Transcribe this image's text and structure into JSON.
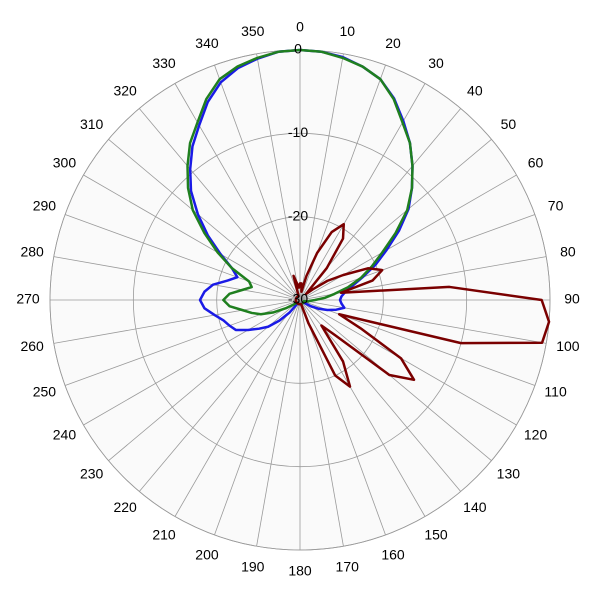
{
  "chart_data": {
    "type": "polar",
    "theta": [
      0,
      5,
      10,
      15,
      20,
      25,
      30,
      35,
      40,
      45,
      50,
      55,
      60,
      65,
      70,
      75,
      80,
      85,
      90,
      95,
      100,
      105,
      110,
      115,
      120,
      125,
      130,
      135,
      140,
      145,
      150,
      155,
      160,
      165,
      170,
      175,
      180,
      185,
      190,
      195,
      200,
      205,
      210,
      215,
      220,
      225,
      230,
      235,
      240,
      245,
      250,
      255,
      260,
      265,
      270,
      275,
      280,
      285,
      290,
      295,
      300,
      305,
      310,
      315,
      320,
      325,
      330,
      335,
      340,
      345,
      350,
      355
    ],
    "series": [
      {
        "color": "#1a1ae6",
        "values": [
          0,
          -0.1,
          -0.4,
          -1,
          -1.8,
          -3.3,
          -5.2,
          -7,
          -9,
          -11,
          -13,
          -15.5,
          -18,
          -20,
          -22,
          -23.5,
          -24.5,
          -25,
          -25.2,
          -25,
          -24.6,
          -25.5,
          -26.5,
          -27.5,
          -28.5,
          -29.5,
          -29.5,
          -29.5,
          -29.5,
          -29.5,
          -29.5,
          -29.5,
          -29.5,
          -29.5,
          -29.5,
          -29.5,
          -29.5,
          -29.5,
          -29.5,
          -29.5,
          -29.5,
          -29.5,
          -29.5,
          -29.5,
          -28,
          -26.5,
          -25,
          -24,
          -22.8,
          -21.5,
          -21,
          -20.5,
          -19.6,
          -18.5,
          -18,
          -18.5,
          -19.4,
          -21,
          -22,
          -21,
          -19,
          -16.5,
          -14,
          -11.5,
          -9.5,
          -7.5,
          -5.8,
          -3.8,
          -2.2,
          -1.2,
          -0.6,
          -0.1
        ]
      },
      {
        "color": "#1f7f1f",
        "values": [
          0,
          -0.1,
          -0.5,
          -1,
          -1.8,
          -3.4,
          -5.4,
          -7,
          -9,
          -11,
          -13.2,
          -16,
          -18.6,
          -20.5,
          -22.2,
          -24,
          -25.8,
          -27,
          -28.2,
          -28.8,
          -29,
          -29.5,
          -29.5,
          -29.5,
          -29.5,
          -29.5,
          -29.5,
          -29.5,
          -29.5,
          -29.5,
          -29.5,
          -29.5,
          -29.5,
          -29.5,
          -29.5,
          -29.5,
          -29.5,
          -29.5,
          -29.5,
          -29.5,
          -29.5,
          -29.5,
          -29.5,
          -29.5,
          -29.5,
          -29.5,
          -29.5,
          -29,
          -28,
          -26.5,
          -25,
          -24,
          -23,
          -21.5,
          -20.8,
          -21.5,
          -23,
          -24,
          -23.5,
          -21,
          -18.6,
          -16,
          -13.2,
          -11,
          -9,
          -7,
          -5.4,
          -3.4,
          -1.8,
          -1,
          -0.5,
          -0.1
        ]
      },
      {
        "color": "#7a0000",
        "values": [
          -28,
          -28,
          -29,
          -27,
          -24,
          -21,
          -19.5,
          -21,
          -25,
          -29,
          -28,
          -26,
          -24,
          -21,
          -19.5,
          -21,
          -25,
          -12,
          -1,
          0,
          -0.5,
          -10,
          -25,
          -22,
          -16,
          -13.3,
          -16,
          -24,
          -26,
          -21,
          -18,
          -20,
          -27,
          -29.5,
          -29.5,
          -29.5,
          -29.5,
          -29.5,
          -29.5,
          -29.5,
          -29.5,
          -29.5,
          -29.5,
          -29.5,
          -29.5,
          -29.5,
          -29.5,
          -29.5,
          -29.5,
          -29.5,
          -29.5,
          -29.5,
          -29.5,
          -29.5,
          -29.5,
          -29.5,
          -29.5,
          -29.5,
          -29.5,
          -29.5,
          -29.5,
          -29.5,
          -29.5,
          -29.5,
          -29.5,
          -29.5,
          -29.5,
          -29.5,
          -29.5,
          -27,
          -28,
          -28.5
        ]
      }
    ],
    "rlim": [
      -30,
      0
    ],
    "rticks": [
      -30,
      -20,
      -10,
      0
    ],
    "thetaticks": [
      0,
      10,
      20,
      30,
      40,
      50,
      60,
      70,
      80,
      90,
      100,
      110,
      120,
      130,
      140,
      150,
      160,
      170,
      180,
      190,
      200,
      210,
      220,
      230,
      240,
      250,
      260,
      270,
      280,
      290,
      300,
      310,
      320,
      330,
      340,
      350
    ],
    "grid": true
  }
}
